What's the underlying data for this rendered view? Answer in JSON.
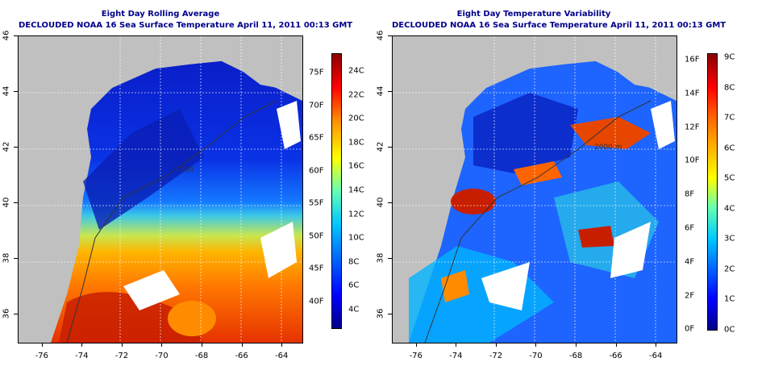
{
  "panels": [
    {
      "title": "Eight Day Rolling Average",
      "subtitle": "DECLOUDED NOAA 16 Sea Surface Temperature April 11, 2011 00:13 GMT",
      "colorbar": {
        "fahrenheit": [
          "75F",
          "70F",
          "65F",
          "60F",
          "55F",
          "50F",
          "45F",
          "40F"
        ],
        "celsius": [
          "24C",
          "22C",
          "20C",
          "18C",
          "16C",
          "14C",
          "12C",
          "10C",
          "8C",
          "6C",
          "4C"
        ]
      }
    },
    {
      "title": "Eight Day Temperature Variability",
      "subtitle": "DECLOUDED NOAA 16 Sea Surface Temperature April 11, 2011 00:13 GMT",
      "colorbar": {
        "fahrenheit": [
          "16F",
          "14F",
          "12F",
          "10F",
          "8F",
          "6F",
          "4F",
          "2F",
          "0F"
        ],
        "celsius": [
          "9C",
          "8C",
          "7C",
          "6C",
          "5C",
          "4C",
          "3C",
          "2C",
          "1C",
          "0C"
        ]
      }
    }
  ],
  "axes": {
    "x_ticks": [
      "-76",
      "-74",
      "-72",
      "-70",
      "-68",
      "-66",
      "-64"
    ],
    "y_ticks": [
      "36",
      "38",
      "40",
      "42",
      "44",
      "46"
    ],
    "xlim": [
      -77.2,
      -63
    ],
    "ylim": [
      35,
      46
    ],
    "grid": true
  },
  "contour_labels": [
    "200",
    "2000 m"
  ],
  "colors": {
    "title": "#00008b",
    "land": "#c0c0c0",
    "cloud": "#ffffff"
  }
}
